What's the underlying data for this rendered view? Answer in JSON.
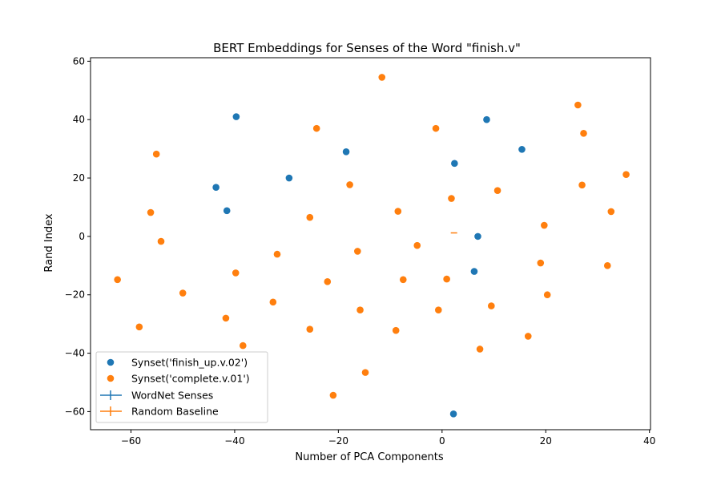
{
  "chart_data": {
    "type": "scatter",
    "title": "BERT Embeddings for Senses of the Word \"finish.v\"",
    "xlabel": "Number of PCA Components",
    "ylabel": "Rand Index",
    "xlim": [
      -67.8,
      40.2
    ],
    "ylim": [
      -66.2,
      61.2
    ],
    "xticks": [
      -60,
      -40,
      -20,
      0,
      20,
      40
    ],
    "yticks": [
      -60,
      -40,
      -20,
      0,
      20,
      40,
      60
    ],
    "xtick_labels": [
      "−60",
      "−40",
      "−20",
      "0",
      "20",
      "40"
    ],
    "ytick_labels": [
      "−60",
      "−40",
      "−20",
      "0",
      "20",
      "40",
      "60"
    ],
    "grid": false,
    "legend_position": "lower-left",
    "series": [
      {
        "name": "Synset('finish_up.v.02')",
        "color": "#1f77b4",
        "points": [
          {
            "x": -39.7,
            "y": 41.0
          },
          {
            "x": 8.6,
            "y": 40.0
          },
          {
            "x": -18.5,
            "y": 29.0
          },
          {
            "x": 15.4,
            "y": 29.8
          },
          {
            "x": 2.4,
            "y": 25.0
          },
          {
            "x": -29.5,
            "y": 20.0
          },
          {
            "x": -43.6,
            "y": 16.8
          },
          {
            "x": -41.5,
            "y": 8.8
          },
          {
            "x": 6.9,
            "y": 0.0
          },
          {
            "x": 6.2,
            "y": -12.0
          },
          {
            "x": 2.2,
            "y": -60.8
          }
        ]
      },
      {
        "name": "Synset('complete.v.01')",
        "color": "#ff7f0e",
        "points": [
          {
            "x": -11.6,
            "y": 54.5
          },
          {
            "x": 26.2,
            "y": 45.0
          },
          {
            "x": -24.2,
            "y": 37.0
          },
          {
            "x": -1.2,
            "y": 37.0
          },
          {
            "x": 27.3,
            "y": 35.3
          },
          {
            "x": -55.1,
            "y": 28.2
          },
          {
            "x": 35.5,
            "y": 21.2
          },
          {
            "x": -17.8,
            "y": 17.7
          },
          {
            "x": 27.0,
            "y": 17.6
          },
          {
            "x": 10.7,
            "y": 15.7
          },
          {
            "x": 1.8,
            "y": 13.0
          },
          {
            "x": -56.2,
            "y": 8.2
          },
          {
            "x": -8.5,
            "y": 8.6
          },
          {
            "x": 32.6,
            "y": 8.5
          },
          {
            "x": -25.5,
            "y": 6.5
          },
          {
            "x": 19.7,
            "y": 3.8
          },
          {
            "x": -54.2,
            "y": -1.7
          },
          {
            "x": -4.8,
            "y": -3.1
          },
          {
            "x": -16.3,
            "y": -5.1
          },
          {
            "x": -31.8,
            "y": -6.1
          },
          {
            "x": 19.0,
            "y": -9.1
          },
          {
            "x": 31.9,
            "y": -10.0
          },
          {
            "x": -39.8,
            "y": -12.5
          },
          {
            "x": -62.6,
            "y": -14.8
          },
          {
            "x": -7.5,
            "y": -14.8
          },
          {
            "x": 0.9,
            "y": -14.6
          },
          {
            "x": -22.1,
            "y": -15.5
          },
          {
            "x": -50.0,
            "y": -19.4
          },
          {
            "x": 20.3,
            "y": -20.0
          },
          {
            "x": -32.6,
            "y": -22.5
          },
          {
            "x": 9.5,
            "y": -23.8
          },
          {
            "x": -15.8,
            "y": -25.2
          },
          {
            "x": -0.7,
            "y": -25.2
          },
          {
            "x": -41.7,
            "y": -28.0
          },
          {
            "x": -58.4,
            "y": -31.0
          },
          {
            "x": -25.5,
            "y": -31.8
          },
          {
            "x": -8.9,
            "y": -32.2
          },
          {
            "x": 16.6,
            "y": -34.2
          },
          {
            "x": -38.4,
            "y": -37.4
          },
          {
            "x": 7.3,
            "y": -38.6
          },
          {
            "x": -14.8,
            "y": -46.6
          },
          {
            "x": -21.0,
            "y": -54.4
          }
        ]
      }
    ],
    "errorbar_series": [
      {
        "name": "WordNet Senses",
        "color": "#1f77b4",
        "points": []
      },
      {
        "name": "Random Baseline",
        "color": "#ff7f0e",
        "points": [
          {
            "x": 2.3,
            "y": 1.2
          }
        ]
      }
    ]
  }
}
